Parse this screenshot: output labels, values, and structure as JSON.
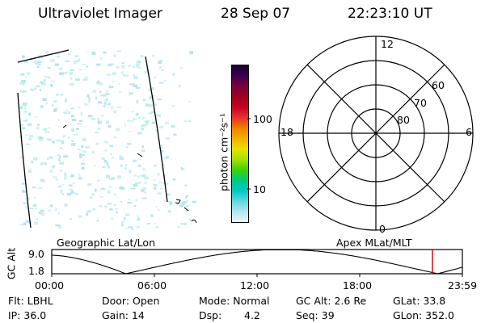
{
  "header": {
    "title": "Ultraviolet Imager",
    "date": "28 Sep 07",
    "time": "22:23:10 UT"
  },
  "colorbar": {
    "unit": "photon cm⁻²s⁻¹",
    "ticks": [
      "100",
      "10"
    ],
    "colors": [
      "#1a0030",
      "#3a0050",
      "#7a0040",
      "#a00020",
      "#c80020",
      "#e83030",
      "#f08000",
      "#f0b000",
      "#e8e000",
      "#a8e000",
      "#40d000",
      "#00c880",
      "#00c8c8",
      "#60d8e0",
      "#b0e8f0",
      "#e8f4f8"
    ]
  },
  "polar": {
    "hour_labels": {
      "top": "12",
      "left": "18",
      "right": "6",
      "bottom": "0"
    },
    "lat_labels": [
      "80",
      "70",
      "60"
    ]
  },
  "timeline": {
    "left_label": "Geographic Lat/Lon",
    "right_label": "Apex MLat/MLT",
    "ylabel": "GC Alt",
    "yticks": [
      "9.0",
      "1.8"
    ],
    "xticks": [
      "00:00",
      "06:00",
      "12:00",
      "18:00",
      "23:59"
    ]
  },
  "info": {
    "flt": "Flt: LBHL",
    "ip": "IP: 36.0",
    "door": "Door: Open",
    "gain": "Gain: 14",
    "mode": "Mode: Normal",
    "dsp_label": "Dsp:",
    "dsp_value": "4.2",
    "gcalt": "GC Alt: 2.6 Re",
    "seq": "Seq: 39",
    "glat": "GLat: 33.8",
    "glon": "GLon: 352.0"
  },
  "colors": {
    "noise": "#a8e4ec",
    "marker": "#cc0000"
  }
}
